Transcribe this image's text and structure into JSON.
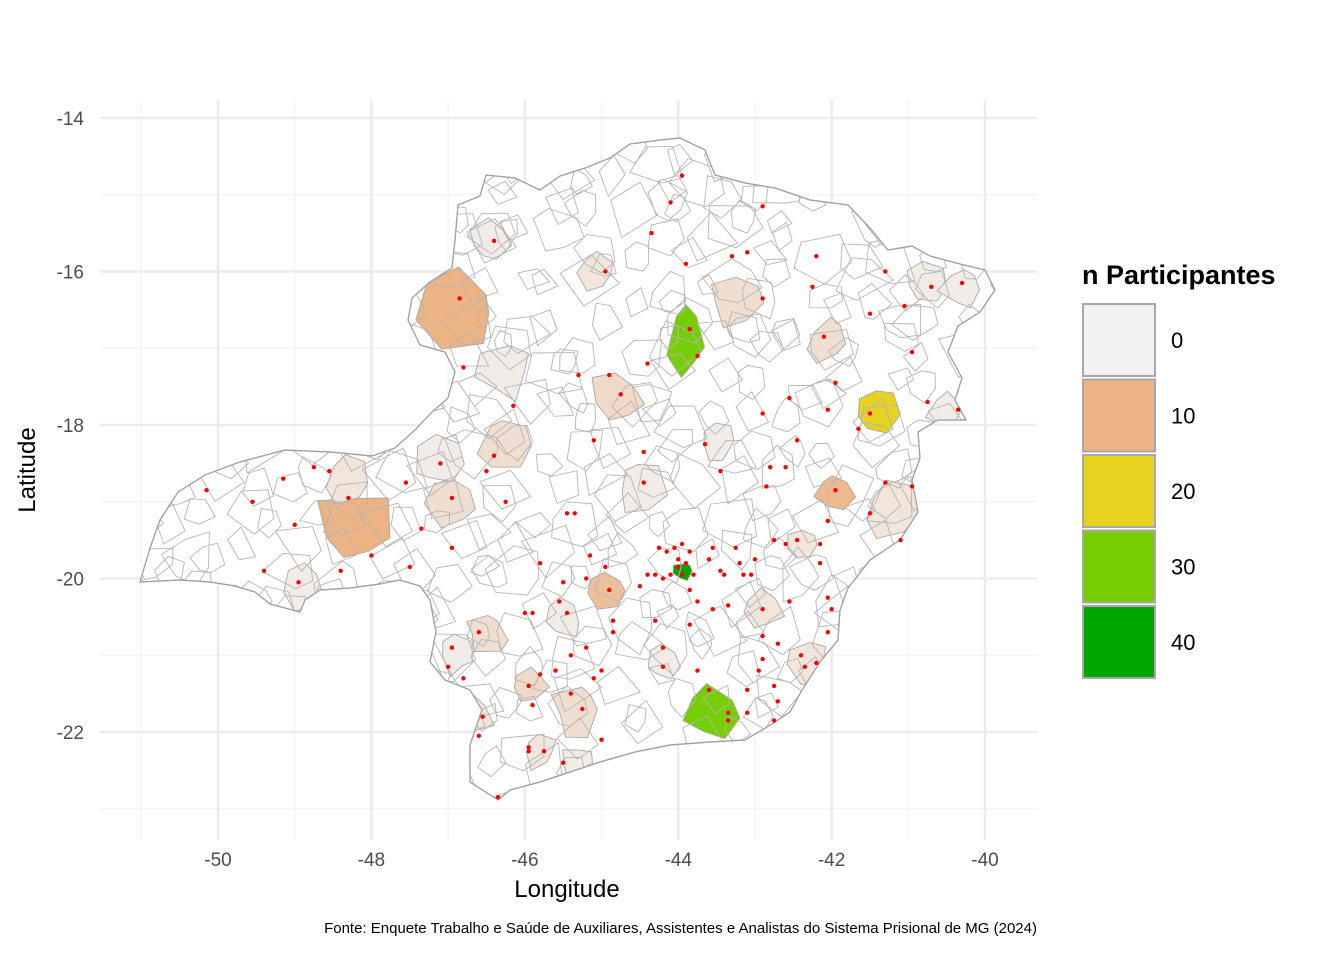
{
  "chart_data": {
    "type": "choropleth-map",
    "title": "",
    "xlabel": "Longitude",
    "ylabel": "Latitude",
    "caption": "Fonte: Enquete Trabalho e Saúde de Auxiliares, Assistentes e Analistas do Sistema Prisional de MG (2024)",
    "x_ticks": [
      -50,
      -48,
      -46,
      -44,
      -42,
      -40
    ],
    "x_tick_labels": [
      "-50",
      "-48",
      "-46",
      "-44",
      "-42",
      "-40"
    ],
    "y_ticks": [
      -14,
      -16,
      -18,
      -20,
      -22
    ],
    "y_tick_labels": [
      "-14",
      "-16",
      "-18",
      "-20",
      "-22"
    ],
    "xlim": [
      -51.4,
      -39.3
    ],
    "ylim": [
      -23.4,
      -13.3
    ],
    "grid": true,
    "legend": {
      "title": "n Participantes",
      "placement": "right",
      "entries": [
        {
          "label": "0",
          "color": "#f2f2f2"
        },
        {
          "label": "10",
          "color": "#ecb384"
        },
        {
          "label": "20",
          "color": "#e6d21f"
        },
        {
          "label": "30",
          "color": "#76cd00"
        },
        {
          "label": "40",
          "color": "#00a600"
        }
      ]
    },
    "point_color": "#ff0000",
    "highlighted_regions": [
      {
        "lon": -46.85,
        "lat": -16.5,
        "value": 10
      },
      {
        "lon": -48.2,
        "lat": -19.3,
        "value": 10
      },
      {
        "lon": -43.9,
        "lat": -16.85,
        "value": 30
      },
      {
        "lon": -41.4,
        "lat": -17.8,
        "value": 20
      },
      {
        "lon": -43.55,
        "lat": -21.75,
        "value": 30
      },
      {
        "lon": -43.95,
        "lat": -19.9,
        "value": 40
      },
      {
        "lon": -41.95,
        "lat": -18.9,
        "value": 9
      },
      {
        "lon": -44.95,
        "lat": -20.15,
        "value": 8
      },
      {
        "lon": -44.8,
        "lat": -17.6,
        "value": 4
      },
      {
        "lon": -46.25,
        "lat": -18.2,
        "value": 3
      },
      {
        "lon": -46.95,
        "lat": -19.0,
        "value": 3
      },
      {
        "lon": -43.25,
        "lat": -16.4,
        "value": 3
      },
      {
        "lon": -42.05,
        "lat": -16.9,
        "value": 3
      },
      {
        "lon": -46.5,
        "lat": -20.7,
        "value": 3
      },
      {
        "lon": -45.95,
        "lat": -21.4,
        "value": 4
      },
      {
        "lon": -45.3,
        "lat": -21.7,
        "value": 3
      },
      {
        "lon": -45.05,
        "lat": -16.0,
        "value": 2
      },
      {
        "lon": -46.45,
        "lat": -15.6,
        "value": 1
      },
      {
        "lon": -46.25,
        "lat": -17.3,
        "value": 1
      },
      {
        "lon": -43.5,
        "lat": -18.2,
        "value": 1
      },
      {
        "lon": -44.5,
        "lat": -18.8,
        "value": 1
      },
      {
        "lon": -40.8,
        "lat": -16.1,
        "value": 1
      },
      {
        "lon": -40.3,
        "lat": -16.2,
        "value": 1
      },
      {
        "lon": -40.5,
        "lat": -17.8,
        "value": 1
      },
      {
        "lon": -41.2,
        "lat": -19.1,
        "value": 2
      },
      {
        "lon": -42.4,
        "lat": -19.55,
        "value": 2
      },
      {
        "lon": -44.2,
        "lat": -21.1,
        "value": 1
      },
      {
        "lon": -45.5,
        "lat": -20.5,
        "value": 1
      },
      {
        "lon": -42.3,
        "lat": -21.1,
        "value": 2
      },
      {
        "lon": -48.9,
        "lat": -20.1,
        "value": 1
      },
      {
        "lon": -48.3,
        "lat": -18.7,
        "value": 2
      },
      {
        "lon": -47.1,
        "lat": -18.5,
        "value": 1
      },
      {
        "lon": -46.7,
        "lat": -21.8,
        "value": 2
      },
      {
        "lon": -45.8,
        "lat": -22.25,
        "value": 2
      },
      {
        "lon": -46.9,
        "lat": -21.0,
        "value": 1
      },
      {
        "lon": -42.9,
        "lat": -20.4,
        "value": 2
      },
      {
        "lon": -45.3,
        "lat": -22.4,
        "value": 1
      }
    ],
    "points": [
      [
        -43.95,
        -14.75
      ],
      [
        -44.1,
        -15.1
      ],
      [
        -44.35,
        -15.5
      ],
      [
        -43.9,
        -15.9
      ],
      [
        -43.85,
        -16.75
      ],
      [
        -43.75,
        -17.1
      ],
      [
        -42.9,
        -15.15
      ],
      [
        -43.3,
        -15.8
      ],
      [
        -43.1,
        -15.75
      ],
      [
        -42.9,
        -16.35
      ],
      [
        -42.2,
        -15.8
      ],
      [
        -42.25,
        -16.2
      ],
      [
        -41.5,
        -16.55
      ],
      [
        -41.3,
        -16.0
      ],
      [
        -40.7,
        -16.2
      ],
      [
        -40.3,
        -16.15
      ],
      [
        -41.05,
        -16.45
      ],
      [
        -40.95,
        -17.05
      ],
      [
        -40.75,
        -17.7
      ],
      [
        -40.35,
        -17.8
      ],
      [
        -42.1,
        -16.85
      ],
      [
        -41.95,
        -17.45
      ],
      [
        -42.05,
        -17.8
      ],
      [
        -42.55,
        -17.65
      ],
      [
        -42.9,
        -17.85
      ],
      [
        -41.5,
        -17.85
      ],
      [
        -41.65,
        -18.05
      ],
      [
        -42.45,
        -18.2
      ],
      [
        -42.6,
        -18.55
      ],
      [
        -42.8,
        -18.55
      ],
      [
        -42.85,
        -18.8
      ],
      [
        -41.95,
        -18.85
      ],
      [
        -41.3,
        -18.75
      ],
      [
        -40.95,
        -18.8
      ],
      [
        -41.5,
        -19.15
      ],
      [
        -42.05,
        -19.25
      ],
      [
        -41.1,
        -19.5
      ],
      [
        -44.95,
        -16.0
      ],
      [
        -44.4,
        -17.2
      ],
      [
        -44.9,
        -17.35
      ],
      [
        -44.75,
        -17.6
      ],
      [
        -45.1,
        -18.2
      ],
      [
        -44.45,
        -18.35
      ],
      [
        -44.45,
        -18.75
      ],
      [
        -43.65,
        -18.25
      ],
      [
        -43.45,
        -18.6
      ],
      [
        -46.4,
        -15.6
      ],
      [
        -46.85,
        -16.35
      ],
      [
        -46.8,
        -17.25
      ],
      [
        -46.15,
        -17.75
      ],
      [
        -46.4,
        -18.4
      ],
      [
        -46.5,
        -18.6
      ],
      [
        -46.25,
        -19.0
      ],
      [
        -47.1,
        -18.5
      ],
      [
        -46.95,
        -18.95
      ],
      [
        -47.55,
        -18.75
      ],
      [
        -47.35,
        -19.35
      ],
      [
        -47.5,
        -19.85
      ],
      [
        -46.95,
        -19.6
      ],
      [
        -48.3,
        -18.95
      ],
      [
        -48.55,
        -18.6
      ],
      [
        -48.75,
        -18.55
      ],
      [
        -49.15,
        -18.7
      ],
      [
        -50.15,
        -18.85
      ],
      [
        -49.55,
        -19.0
      ],
      [
        -49.0,
        -19.3
      ],
      [
        -48.0,
        -19.7
      ],
      [
        -48.95,
        -20.05
      ],
      [
        -49.4,
        -19.9
      ],
      [
        -48.4,
        -19.9
      ],
      [
        -45.45,
        -19.15
      ],
      [
        -45.15,
        -19.7
      ],
      [
        -44.95,
        -19.85
      ],
      [
        -44.9,
        -20.15
      ],
      [
        -45.2,
        -20.0
      ],
      [
        -45.5,
        -20.05
      ],
      [
        -45.45,
        -20.45
      ],
      [
        -45.55,
        -20.3
      ],
      [
        -45.8,
        -19.8
      ],
      [
        -45.9,
        -20.45
      ],
      [
        -44.25,
        -19.6
      ],
      [
        -44.15,
        -19.65
      ],
      [
        -44.05,
        -19.6
      ],
      [
        -43.95,
        -19.55
      ],
      [
        -43.85,
        -19.65
      ],
      [
        -44.0,
        -19.75
      ],
      [
        -43.9,
        -19.8
      ],
      [
        -44.0,
        -19.85
      ],
      [
        -43.95,
        -19.95
      ],
      [
        -43.8,
        -19.95
      ],
      [
        -44.1,
        -19.95
      ],
      [
        -44.2,
        -20.0
      ],
      [
        -44.3,
        -19.95
      ],
      [
        -44.4,
        -19.95
      ],
      [
        -43.85,
        -20.15
      ],
      [
        -43.75,
        -20.3
      ],
      [
        -43.85,
        -20.6
      ],
      [
        -43.55,
        -19.6
      ],
      [
        -43.6,
        -19.75
      ],
      [
        -43.45,
        -19.9
      ],
      [
        -43.25,
        -19.6
      ],
      [
        -43.2,
        -19.8
      ],
      [
        -43.15,
        -19.95
      ],
      [
        -43.4,
        -19.95
      ],
      [
        -43.05,
        -19.95
      ],
      [
        -43.0,
        -19.75
      ],
      [
        -42.75,
        -19.5
      ],
      [
        -42.6,
        -19.55
      ],
      [
        -42.45,
        -19.5
      ],
      [
        -42.15,
        -19.55
      ],
      [
        -42.15,
        -19.8
      ],
      [
        -42.05,
        -20.25
      ],
      [
        -42.0,
        -20.4
      ],
      [
        -42.05,
        -20.7
      ],
      [
        -42.55,
        -20.3
      ],
      [
        -42.9,
        -20.4
      ],
      [
        -43.35,
        -20.35
      ],
      [
        -43.55,
        -20.4
      ],
      [
        -42.9,
        -20.75
      ],
      [
        -42.7,
        -20.85
      ],
      [
        -42.4,
        -21.0
      ],
      [
        -42.2,
        -21.1
      ],
      [
        -42.35,
        -21.15
      ],
      [
        -42.9,
        -21.05
      ],
      [
        -42.95,
        -21.2
      ],
      [
        -42.75,
        -21.4
      ],
      [
        -42.7,
        -21.6
      ],
      [
        -42.75,
        -21.85
      ],
      [
        -43.1,
        -21.45
      ],
      [
        -43.1,
        -21.75
      ],
      [
        -43.35,
        -21.75
      ],
      [
        -43.6,
        -21.45
      ],
      [
        -43.75,
        -21.2
      ],
      [
        -43.35,
        -21.85
      ],
      [
        -44.2,
        -20.9
      ],
      [
        -44.2,
        -21.15
      ],
      [
        -44.3,
        -20.55
      ],
      [
        -44.5,
        -20.1
      ],
      [
        -44.85,
        -20.55
      ],
      [
        -44.85,
        -20.7
      ],
      [
        -45.0,
        -21.2
      ],
      [
        -45.2,
        -20.9
      ],
      [
        -45.1,
        -21.3
      ],
      [
        -45.4,
        -21.0
      ],
      [
        -45.6,
        -21.2
      ],
      [
        -45.8,
        -21.25
      ],
      [
        -45.95,
        -21.4
      ],
      [
        -45.9,
        -21.65
      ],
      [
        -45.4,
        -21.5
      ],
      [
        -45.25,
        -21.7
      ],
      [
        -45.0,
        -22.1
      ],
      [
        -45.5,
        -22.4
      ],
      [
        -45.75,
        -22.25
      ],
      [
        -45.95,
        -22.2
      ],
      [
        -45.95,
        -22.25
      ],
      [
        -46.55,
        -21.8
      ],
      [
        -46.6,
        -22.05
      ],
      [
        -46.35,
        -22.85
      ],
      [
        -46.6,
        -20.7
      ],
      [
        -46.95,
        -20.9
      ],
      [
        -47.0,
        -21.15
      ],
      [
        -46.8,
        -21.3
      ],
      [
        -46.0,
        -20.45
      ],
      [
        -45.35,
        -19.15
      ],
      [
        -45.3,
        -17.35
      ]
    ]
  }
}
